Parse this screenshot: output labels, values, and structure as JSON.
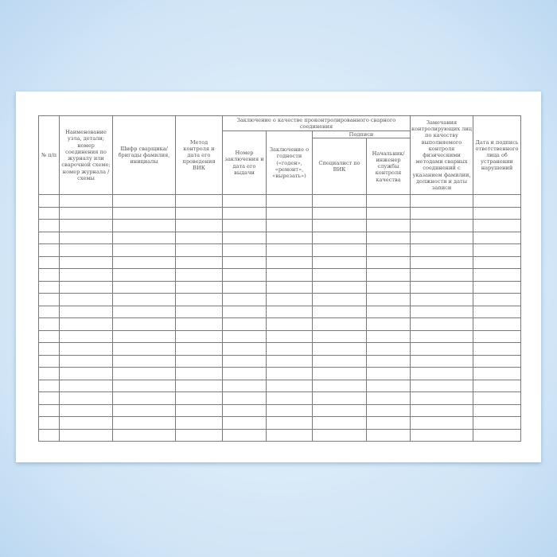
{
  "table": {
    "headers": {
      "num": "№ п/п",
      "node": "Наименование узла, детали; номер соединения по журналу или сварочной схеме; номер журнала /схемы",
      "welder": "Шифр сварщика/бригады фамилия, инициалы",
      "method": "Метод контроля и дата его проведения ВИК",
      "conclusion_group": "Заключение о качестве проконтролированного сварного соединения",
      "conclusion_number": "Номер заключения и дата его выдачи",
      "fitness": "Заключение о годности («годен», «ремонт», «вырезать»)",
      "signatures_group": "Подписи",
      "specialist": "Специалист по ВИК",
      "chief": "Начальник/ инженер службы контроля качества",
      "remarks": "Замечания контролирующих лиц по качеству выполняемого контроля физическими методами сварных соединений с указанием фамилии, должности и даты записи",
      "fix_date": "Дата и подпись ответственного лица об устранении нарушений"
    },
    "empty_rows": 20,
    "columns": 10
  },
  "colors": {
    "background": "#cfe4f6",
    "paper": "#ffffff",
    "lines": "#7a7a7a"
  }
}
